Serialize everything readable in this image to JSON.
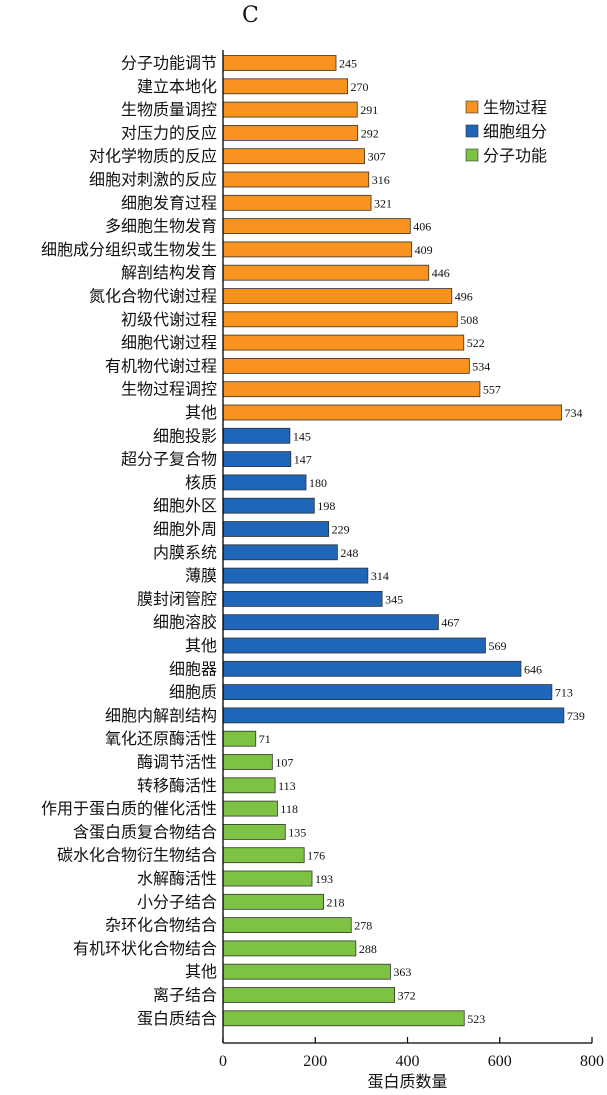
{
  "panel_label": "C",
  "chart_data": {
    "type": "bar",
    "orientation": "horizontal",
    "xlabel": "蛋白质数量",
    "ylabel": "",
    "xlim": [
      0,
      800
    ],
    "xticks": [
      0,
      200,
      400,
      600,
      800
    ],
    "grid": false,
    "legend_position": "top-right",
    "series": [
      {
        "name": "生物过程",
        "color": "#F7931E",
        "categories": [
          "分子功能调节",
          "建立本地化",
          "生物质量调控",
          "对压力的反应",
          "对化学物质的反应",
          "细胞对刺激的反应",
          "细胞发育过程",
          "多细胞生物发育",
          "细胞成分组织或生物发生",
          "解剖结构发育",
          "氮化合物代谢过程",
          "初级代谢过程",
          "细胞代谢过程",
          "有机物代谢过程",
          "生物过程调控",
          "其他"
        ],
        "values": [
          245,
          270,
          291,
          292,
          307,
          316,
          321,
          406,
          409,
          446,
          496,
          508,
          522,
          534,
          557,
          734
        ]
      },
      {
        "name": "细胞组分",
        "color": "#1F66B8",
        "categories": [
          "细胞投影",
          "超分子复合物",
          "核质",
          "细胞外区",
          "细胞外周",
          "内膜系统",
          "薄膜",
          "膜封闭管腔",
          "细胞溶胶",
          "其他",
          "细胞器",
          "细胞质",
          "细胞内解剖结构"
        ],
        "values": [
          145,
          147,
          180,
          198,
          229,
          248,
          314,
          345,
          467,
          569,
          646,
          713,
          739
        ]
      },
      {
        "name": "分子功能",
        "color": "#7DC243",
        "categories": [
          "氧化还原酶活性",
          "酶调节活性",
          "转移酶活性",
          "作用于蛋白质的催化活性",
          "含蛋白质复合物结合",
          "碳水化合物衍生物结合",
          "水解酶活性",
          "小分子结合",
          "杂环化合物结合",
          "有机环状化合物结合",
          "其他",
          "离子结合",
          "蛋白质结合"
        ],
        "values": [
          71,
          107,
          113,
          118,
          135,
          176,
          193,
          218,
          278,
          288,
          363,
          372,
          523
        ]
      }
    ]
  }
}
